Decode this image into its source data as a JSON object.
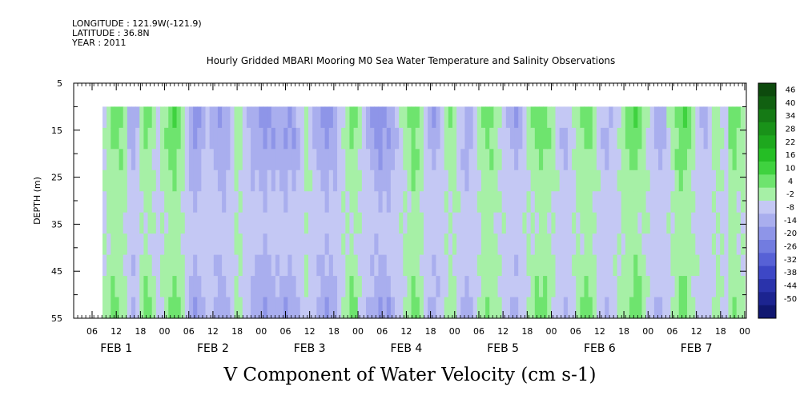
{
  "header": {
    "longitude": "LONGITUDE : 121.9W(-121.9)",
    "latitude": "LATITUDE : 36.8N",
    "year": "YEAR : 2011"
  },
  "chart_data": {
    "type": "heatmap",
    "title": "Hourly Gridded MBARI Mooring M0 Sea Water Temperature and Salinity Observations",
    "xlabel": "V Component of Water Velocity (cm s-1)",
    "ylabel": "DEPTH (m)",
    "ylim": [
      55,
      5
    ],
    "y_ticks": [
      "5",
      "15",
      "25",
      "35",
      "45",
      "55"
    ],
    "x_hour_ticks": [
      "06",
      "12",
      "18",
      "00",
      "06",
      "12",
      "18",
      "00",
      "06",
      "12",
      "18",
      "00",
      "06",
      "12",
      "18",
      "00",
      "06",
      "12",
      "18",
      "00",
      "06",
      "12",
      "18",
      "00",
      "06",
      "12",
      "18",
      "00"
    ],
    "x_day_labels": [
      "FEB  1",
      "FEB  2",
      "FEB  3",
      "FEB  4",
      "FEB  5",
      "FEB  6",
      "FEB  7"
    ],
    "colorbar_labels": [
      "46",
      "40",
      "34",
      "28",
      "22",
      "16",
      "10",
      "4",
      "-2",
      "-8",
      "-14",
      "-20",
      "-26",
      "-32",
      "-38",
      "-44",
      "-50"
    ],
    "colorbar_colors": [
      "#0d4a0d",
      "#116011",
      "#157a15",
      "#199219",
      "#1ea81e",
      "#25be25",
      "#3fd23f",
      "#6ee46e",
      "#a6f0a6",
      "#c4c8f4",
      "#a9aeee",
      "#8e95e8",
      "#727ce0",
      "#5761d6",
      "#3d47c6",
      "#2a33ab",
      "#1c2490",
      "#101770"
    ],
    "data_depth_range": [
      10,
      55
    ],
    "columns_v_cm_s": [
      2,
      6,
      10,
      9,
      8,
      3,
      -6,
      -9,
      -5,
      4,
      9,
      7,
      3,
      -2,
      3,
      8,
      10,
      12,
      8,
      4,
      -3,
      -8,
      -12,
      -10,
      -7,
      -3,
      -6,
      -9,
      -12,
      -10,
      -7,
      -2,
      5,
      3,
      -2,
      -5,
      -8,
      -10,
      -12,
      -14,
      -12,
      -10,
      -8,
      -9,
      -11,
      -12,
      -10,
      -6,
      -2,
      3,
      -1,
      -5,
      -9,
      -11,
      -13,
      -12,
      -9,
      -4,
      1,
      5,
      9,
      7,
      2,
      -3,
      -7,
      -10,
      -12,
      -14,
      -13,
      -11,
      -8,
      -4,
      0,
      3,
      7,
      11,
      9,
      4,
      -2,
      -6,
      -9,
      -7,
      -3,
      2,
      6,
      4,
      -1,
      -5,
      -8,
      -6,
      -2,
      3,
      6,
      9,
      8,
      5,
      2,
      -2,
      -5,
      -7,
      -9,
      -6,
      -2,
      3,
      6,
      9,
      12,
      10,
      7,
      3,
      -1,
      -4,
      -6,
      -3,
      1,
      5,
      8,
      10,
      8,
      4,
      -1,
      -4,
      -6,
      -4,
      -1,
      2,
      5,
      8,
      10,
      12,
      9,
      5,
      1,
      -3,
      -6,
      -8,
      -5,
      0,
      4,
      8,
      12,
      13,
      9,
      4,
      -1,
      -4,
      -6,
      -3,
      2,
      5,
      1,
      -3,
      8,
      10,
      6,
      3
    ],
    "depth_profile": [
      1.0,
      0.9,
      0.7,
      0.5,
      0.35,
      0.25,
      0.3,
      0.45,
      0.6,
      0.8
    ]
  }
}
